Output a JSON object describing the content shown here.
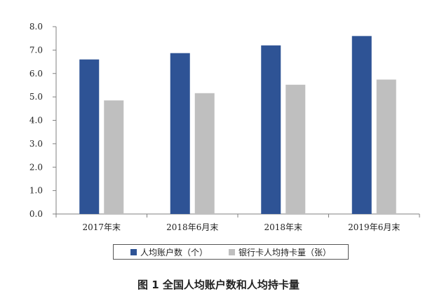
{
  "chart_data": {
    "type": "bar",
    "categories": [
      "2017年末",
      "2018年6月末",
      "2018年末",
      "2019年6月末"
    ],
    "series": [
      {
        "name": "人均账户数（个）",
        "values": [
          6.6,
          6.87,
          7.2,
          7.6
        ],
        "color": "#2e5395"
      },
      {
        "name": "银行卡人均持卡量（张）",
        "values": [
          4.85,
          5.16,
          5.52,
          5.74
        ],
        "color": "#bfbfbf"
      }
    ],
    "yticks": [
      "0.0",
      "1.0",
      "2.0",
      "3.0",
      "4.0",
      "5.0",
      "6.0",
      "7.0",
      "8.0"
    ],
    "ylim": [
      0,
      8
    ],
    "legend_position": "bottom",
    "grid": false
  },
  "caption": "图 1  全国人均账户数和人均持卡量"
}
